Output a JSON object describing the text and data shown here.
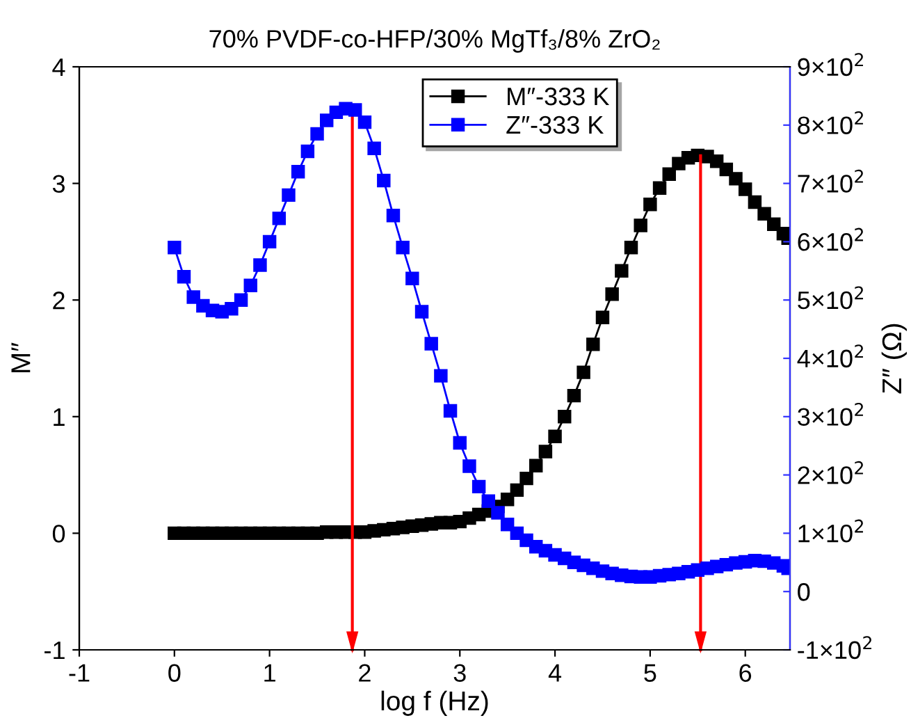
{
  "chart_data": {
    "type": "line",
    "title": "70% PVDF-co-HFP/30% MgTf₃/8% ZrO₂",
    "xlabel": "log f (Hz)",
    "ylabel": "M″",
    "y2label": "Z″ (Ω)",
    "xlim": [
      -1,
      6.47
    ],
    "xticks": [
      {
        "value": -1,
        "label": "-1"
      },
      0,
      1,
      2,
      3,
      4,
      5,
      6
    ],
    "ylim": [
      -1,
      4
    ],
    "yticks": [
      {
        "value": -1,
        "label": "-1"
      },
      0,
      1,
      2,
      3,
      4
    ],
    "y2lim": [
      -100,
      900
    ],
    "y2ticks": [
      {
        "value": -100,
        "label": "-1×10$^{2}$"
      },
      0,
      {
        "value": 100,
        "label": "1×10$^{2}$"
      },
      {
        "value": 200,
        "label": "2×10$^{2}$"
      },
      {
        "value": 300,
        "label": "3×10$^{2}$"
      },
      {
        "value": 400,
        "label": "4×10$^{2}$"
      },
      {
        "value": 500,
        "label": "5×10$^{2}$"
      },
      {
        "value": 600,
        "label": "6×10$^{2}$"
      },
      {
        "value": 700,
        "label": "7×10$^{2}$"
      },
      {
        "value": 800,
        "label": "8×10$^{2}$"
      },
      {
        "value": 900,
        "label": "9×10$^{2}$"
      }
    ],
    "x": [
      0,
      0.1,
      0.2,
      0.3,
      0.4,
      0.5,
      0.6,
      0.7,
      0.8,
      0.9,
      1.0,
      1.1,
      1.2,
      1.3,
      1.4,
      1.5,
      1.6,
      1.7,
      1.8,
      1.9,
      2.0,
      2.1,
      2.2,
      2.3,
      2.4,
      2.5,
      2.6,
      2.7,
      2.8,
      2.9,
      3.0,
      3.1,
      3.2,
      3.3,
      3.4,
      3.5,
      3.6,
      3.7,
      3.8,
      3.9,
      4.0,
      4.1,
      4.2,
      4.3,
      4.4,
      4.5,
      4.6,
      4.7,
      4.8,
      4.9,
      5.0,
      5.1,
      5.2,
      5.3,
      5.4,
      5.5,
      5.6,
      5.7,
      5.8,
      5.9,
      6.0,
      6.1,
      6.2,
      6.3,
      6.4,
      6.45
    ],
    "series": [
      {
        "name": "M″-333 K",
        "color": "#000000",
        "values": [
          0,
          0,
          0,
          0,
          0,
          0,
          0,
          0,
          0,
          0,
          0,
          0,
          0,
          0,
          0,
          0,
          0.01,
          0.01,
          0.01,
          0.01,
          0.01,
          0.02,
          0.03,
          0.04,
          0.05,
          0.06,
          0.07,
          0.08,
          0.09,
          0.09,
          0.1,
          0.13,
          0.16,
          0.19,
          0.23,
          0.29,
          0.37,
          0.47,
          0.58,
          0.7,
          0.83,
          1.0,
          1.18,
          1.38,
          1.62,
          1.85,
          2.05,
          2.25,
          2.45,
          2.64,
          2.82,
          2.96,
          3.08,
          3.17,
          3.22,
          3.24,
          3.23,
          3.19,
          3.12,
          3.04,
          2.95,
          2.84,
          2.74,
          2.65,
          2.57,
          2.53
        ]
      },
      {
        "name": "Z″-333 K",
        "color": "#0000ff",
        "axis": "y2",
        "values": [
          590,
          540,
          505,
          490,
          482,
          480,
          485,
          500,
          525,
          560,
          600,
          640,
          680,
          720,
          755,
          785,
          808,
          822,
          828,
          826,
          805,
          760,
          705,
          645,
          590,
          537,
          480,
          425,
          370,
          310,
          255,
          215,
          180,
          155,
          135,
          115,
          100,
          88,
          77,
          70,
          63,
          57,
          50,
          45,
          40,
          35,
          31,
          28,
          26,
          25,
          25,
          27,
          29,
          31,
          34,
          37,
          40,
          43,
          46,
          49,
          51,
          53,
          52,
          49,
          44,
          40
        ]
      }
    ],
    "marker": "square",
    "line_style": "solid",
    "legend": "top",
    "grid": false,
    "ref_lines": [
      {
        "axis": "x",
        "value": 1.87,
        "color": "#ff0000"
      },
      {
        "axis": "x",
        "value": 5.53,
        "color": "#ff0000"
      }
    ]
  }
}
